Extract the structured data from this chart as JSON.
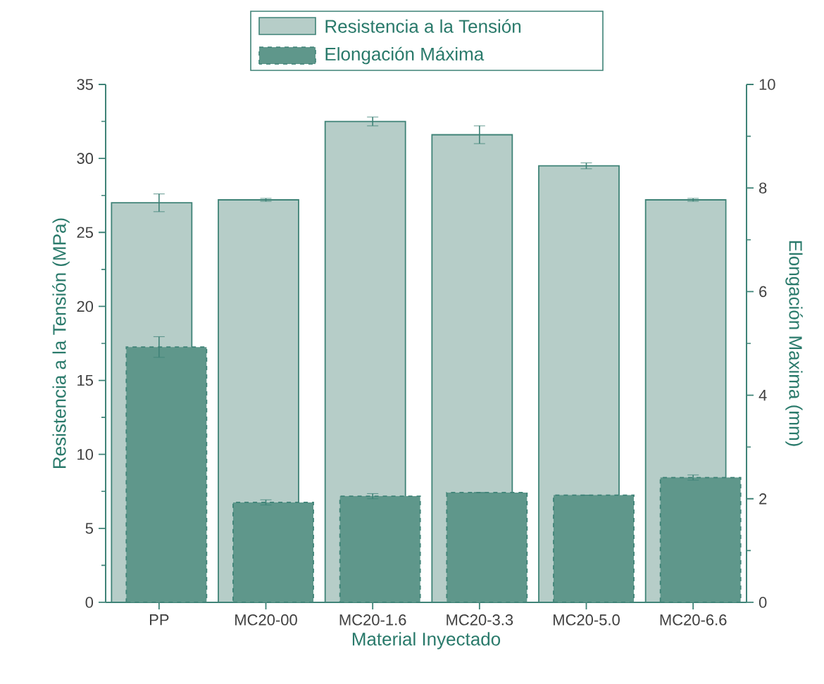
{
  "chart_data": {
    "type": "bar",
    "categories": [
      "PP",
      "MC20-00",
      "MC20-1.6",
      "MC20-3.3",
      "MC20-5.0",
      "MC20-6.6"
    ],
    "series": [
      {
        "name": "Resistencia a la Tensión",
        "color": "#b6cdc8",
        "values": [
          27.0,
          27.2,
          32.5,
          31.6,
          29.5,
          27.2
        ],
        "errors": [
          0.6,
          0.1,
          0.3,
          0.6,
          0.2,
          0.1
        ]
      },
      {
        "name": "Elongación Máxima",
        "color": "#5f978b",
        "axis": "y2",
        "values": [
          4.93,
          1.93,
          2.05,
          2.12,
          2.07,
          2.41
        ],
        "errors": [
          0.2,
          0.05,
          0.05,
          null,
          null,
          0.05
        ]
      }
    ],
    "xlabel": "Material Inyectado",
    "ylabel": "Resistencia a la Tensión (MPa)",
    "y2label": "Elongación Maxima (mm)",
    "ylim": [
      0,
      35
    ],
    "yticks": [
      0,
      5,
      10,
      15,
      20,
      25,
      30,
      35
    ],
    "y2lim": [
      0,
      10
    ],
    "y2ticks": [
      0,
      2,
      4,
      6,
      8,
      10
    ],
    "legend": "top"
  }
}
